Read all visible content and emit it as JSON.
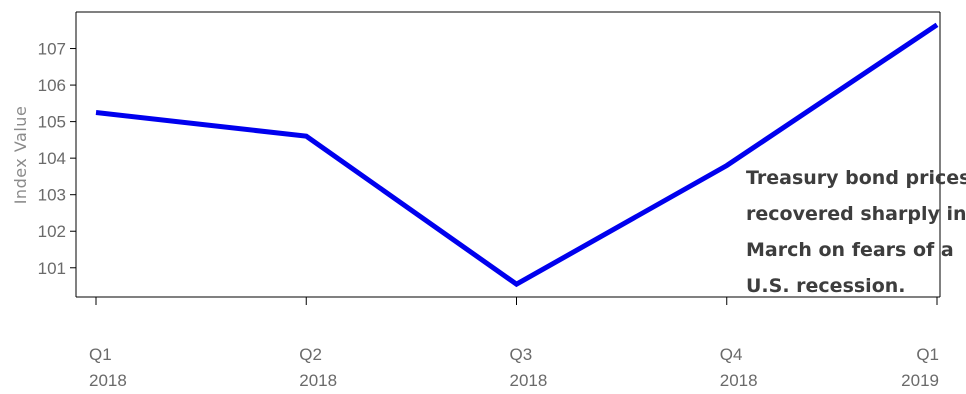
{
  "chart_data": {
    "type": "line",
    "title": "",
    "xlabel": "",
    "ylabel": "Index Value",
    "categories": [
      [
        "Q1",
        "2018"
      ],
      [
        "Q2",
        "2018"
      ],
      [
        "Q3",
        "2018"
      ],
      [
        "Q4",
        "2018"
      ],
      [
        "Q1",
        "2019"
      ]
    ],
    "series": [
      {
        "color": "#0000ee",
        "values": [
          105.25,
          104.6,
          100.55,
          103.8,
          107.65
        ]
      }
    ],
    "ylim": [
      100.2,
      108.0
    ],
    "yticks": [
      101,
      102,
      103,
      104,
      105,
      106,
      107
    ],
    "grid": false,
    "annotation": [
      "Treasury bond prices",
      "recovered sharply in",
      "March on fears of a",
      "U.S. recession."
    ]
  }
}
